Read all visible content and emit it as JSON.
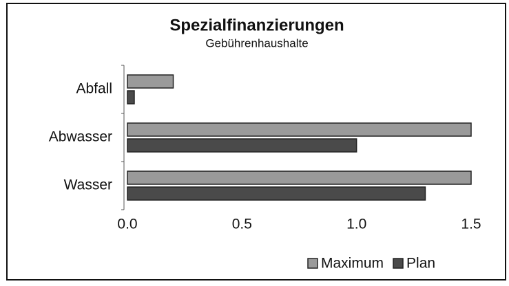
{
  "chart_data": {
    "type": "bar",
    "orientation": "horizontal",
    "title": "Spezialfinanzierungen",
    "subtitle": "Gebührenhaushalte",
    "categories": [
      "Abfall",
      "Abwasser",
      "Wasser"
    ],
    "series": [
      {
        "name": "Maximum",
        "color": "#9a9a9a",
        "values": [
          0.2,
          1.5,
          1.5
        ]
      },
      {
        "name": "Plan",
        "color": "#4a4a4a",
        "values": [
          0.03,
          1.0,
          1.3
        ]
      }
    ],
    "xlim": [
      0,
      1.5
    ],
    "xticks": [
      {
        "value": 0,
        "label": "0.0"
      },
      0.5,
      {
        "value": 1,
        "label": "1.0"
      },
      1.5
    ],
    "legend": "bottom-right",
    "grid": false
  }
}
